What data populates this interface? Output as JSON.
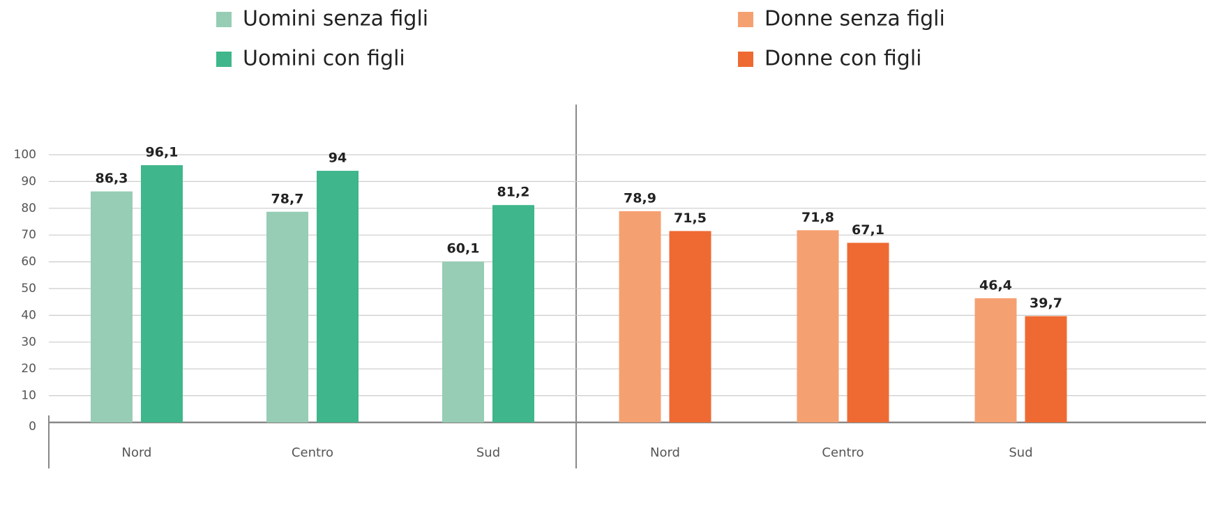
{
  "chart_data": [
    {
      "type": "bar",
      "categories": [
        "Nord",
        "Centro",
        "Sud"
      ],
      "series": [
        {
          "name": "Uomini senza figli",
          "color": "#96cdb4",
          "values": [
            86.3,
            78.7,
            60.1
          ],
          "value_labels": [
            "86,3",
            "78,7",
            "60,1"
          ]
        },
        {
          "name": "Uomini con figli",
          "color": "#3fb68b",
          "values": [
            96.1,
            94,
            81.2
          ],
          "value_labels": [
            "96,1",
            "94",
            "81,2"
          ]
        }
      ],
      "ylim": [
        0,
        100
      ],
      "yticks": [
        0,
        10,
        20,
        30,
        40,
        50,
        60,
        70,
        80,
        90,
        100
      ],
      "grid": true
    },
    {
      "type": "bar",
      "categories": [
        "Nord",
        "Centro",
        "Sud"
      ],
      "series": [
        {
          "name": "Donne senza figli",
          "color": "#f5a071",
          "values": [
            78.9,
            71.8,
            46.4
          ],
          "value_labels": [
            "78,9",
            "71,8",
            "46,4"
          ]
        },
        {
          "name": "Donne con figli",
          "color": "#ef6a32",
          "values": [
            71.5,
            67.1,
            39.7
          ],
          "value_labels": [
            "71,5",
            "67,1",
            "39,7"
          ]
        }
      ],
      "ylim": [
        0,
        100
      ],
      "yticks": [
        0,
        10,
        20,
        30,
        40,
        50,
        60,
        70,
        80,
        90,
        100
      ],
      "grid": true
    }
  ]
}
